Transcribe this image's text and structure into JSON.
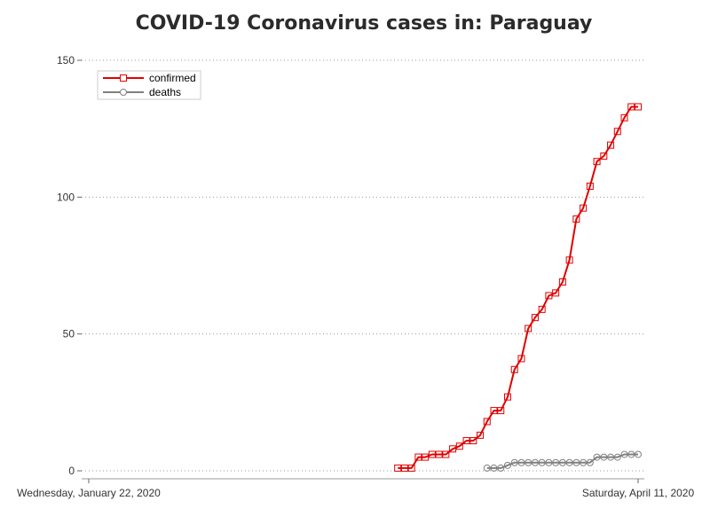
{
  "chart_data": {
    "type": "line",
    "title": "COVID-19 Coronavirus cases in: Paraguay",
    "xlabel": "",
    "ylabel": "",
    "x_tick_labels": [
      "Wednesday, January 22, 2020",
      "Saturday, April 11, 2020"
    ],
    "x_range": [
      "2020-01-22",
      "2020-04-11"
    ],
    "ylim": [
      0,
      150
    ],
    "y_ticks": [
      0,
      50,
      100,
      150
    ],
    "grid": "horizontal-dotted",
    "legend_position": "top-left",
    "series": [
      {
        "name": "confirmed",
        "color": "#e00000",
        "marker": "square",
        "x": [
          "2020-03-07",
          "2020-03-08",
          "2020-03-09",
          "2020-03-10",
          "2020-03-11",
          "2020-03-12",
          "2020-03-13",
          "2020-03-14",
          "2020-03-15",
          "2020-03-16",
          "2020-03-17",
          "2020-03-18",
          "2020-03-19",
          "2020-03-20",
          "2020-03-21",
          "2020-03-22",
          "2020-03-23",
          "2020-03-24",
          "2020-03-25",
          "2020-03-26",
          "2020-03-27",
          "2020-03-28",
          "2020-03-29",
          "2020-03-30",
          "2020-03-31",
          "2020-04-01",
          "2020-04-02",
          "2020-04-03",
          "2020-04-04",
          "2020-04-05",
          "2020-04-06",
          "2020-04-07",
          "2020-04-08",
          "2020-04-09",
          "2020-04-10",
          "2020-04-11"
        ],
        "y": [
          1,
          1,
          1,
          5,
          5,
          6,
          6,
          6,
          8,
          9,
          11,
          11,
          13,
          18,
          22,
          22,
          27,
          37,
          41,
          52,
          56,
          59,
          64,
          65,
          69,
          77,
          92,
          96,
          104,
          113,
          115,
          119,
          124,
          129,
          133,
          133
        ]
      },
      {
        "name": "deaths",
        "color": "#808080",
        "marker": "circle",
        "x": [
          "2020-03-20",
          "2020-03-21",
          "2020-03-22",
          "2020-03-23",
          "2020-03-24",
          "2020-03-25",
          "2020-03-26",
          "2020-03-27",
          "2020-03-28",
          "2020-03-29",
          "2020-03-30",
          "2020-03-31",
          "2020-04-01",
          "2020-04-02",
          "2020-04-03",
          "2020-04-04",
          "2020-04-05",
          "2020-04-06",
          "2020-04-07",
          "2020-04-08",
          "2020-04-09",
          "2020-04-10",
          "2020-04-11"
        ],
        "y": [
          1,
          1,
          1,
          2,
          3,
          3,
          3,
          3,
          3,
          3,
          3,
          3,
          3,
          3,
          3,
          3,
          5,
          5,
          5,
          5,
          6,
          6,
          6
        ]
      }
    ]
  }
}
